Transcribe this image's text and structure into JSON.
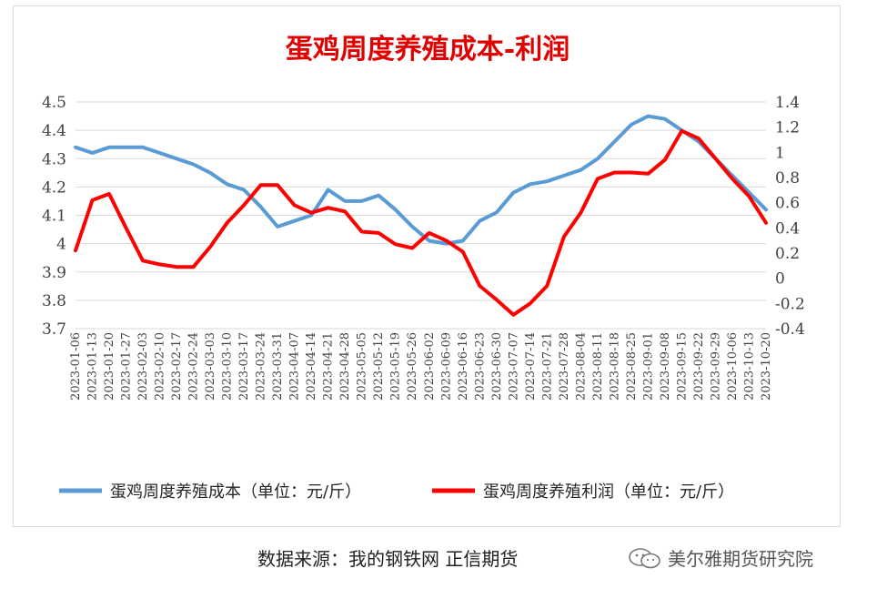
{
  "chart_data": {
    "type": "line",
    "title": "蛋鸡周度养殖成本-利润",
    "x": [
      "2023-01-06",
      "2023-01-13",
      "2023-01-20",
      "2023-01-27",
      "2023-02-03",
      "2023-02-10",
      "2023-02-17",
      "2023-02-24",
      "2023-03-03",
      "2023-03-10",
      "2023-03-17",
      "2023-03-24",
      "2023-03-31",
      "2023-04-07",
      "2023-04-14",
      "2023-04-21",
      "2023-04-28",
      "2023-05-05",
      "2023-05-12",
      "2023-05-19",
      "2023-05-26",
      "2023-06-02",
      "2023-06-09",
      "2023-06-16",
      "2023-06-23",
      "2023-06-30",
      "2023-07-07",
      "2023-07-14",
      "2023-07-21",
      "2023-07-28",
      "2023-08-04",
      "2023-08-11",
      "2023-08-18",
      "2023-08-25",
      "2023-09-01",
      "2023-09-08",
      "2023-09-15",
      "2023-09-22",
      "2023-09-29",
      "2023-10-06",
      "2023-10-13",
      "2023-10-20"
    ],
    "x_tick_labels": [
      "2023-01-06",
      "2023-01-13",
      "2023-01-20",
      "2023-01-27",
      "2023-02-03",
      "2023-02-10",
      "2023-02-17",
      "2023-02-24",
      "2023-03-03",
      "2023-03-10",
      "2023-03-17",
      "2023-03-24",
      "2023-03-31",
      "2023-04-07",
      "2023-04-14",
      "2023-04-21",
      "2023-04-28",
      "2023-05-05",
      "2023-05-12",
      "2023-05-19",
      "2023-05-26",
      "2023-06-02",
      "2023-06-09",
      "2023-06-16",
      "2023-06-23",
      "2023-06-30",
      "2023-07-07",
      "2023-07-14",
      "2023-07-21",
      "2023-07-28",
      "2023-08-04",
      "2023-08-11",
      "2023-08-18",
      "2023-08-25",
      "2023-09-01",
      "2023-09-08",
      "2023-09-15",
      "2023-09-22",
      "2023-09-29",
      "2023-10-06",
      "2023-10-13",
      "2023-10-20"
    ],
    "y_left_ticks": [
      "4.5",
      "4.4",
      "4.3",
      "4.2",
      "4.1",
      "4",
      "3.9",
      "3.8",
      "3.7"
    ],
    "y_right_ticks": [
      "1.4",
      "1.2",
      "1",
      "0.8",
      "0.6",
      "0.4",
      "0.2",
      "0",
      "-0.2",
      "-0.4"
    ],
    "ylim_left": [
      3.7,
      4.5
    ],
    "ylim_right": [
      -0.4,
      1.4
    ],
    "grid": "horizontal",
    "legend_position": "bottom",
    "series": [
      {
        "name": "蛋鸡周度养殖成本（单位：元/斤）",
        "axis": "left",
        "color": "#5B9BD5",
        "values": [
          4.34,
          4.32,
          4.34,
          4.34,
          4.34,
          4.32,
          4.3,
          4.28,
          4.25,
          4.21,
          4.19,
          4.13,
          4.06,
          4.08,
          4.1,
          4.19,
          4.15,
          4.15,
          4.17,
          4.12,
          4.06,
          4.01,
          4.0,
          4.01,
          4.08,
          4.11,
          4.18,
          4.21,
          4.22,
          4.24,
          4.26,
          4.3,
          4.36,
          4.42,
          4.45,
          4.44,
          4.4,
          4.36,
          4.3,
          4.24,
          4.18,
          4.12
        ]
      },
      {
        "name": "蛋鸡周度养殖利润（单位：元/斤）",
        "axis": "right",
        "color": "#FF0000",
        "values": [
          0.22,
          0.62,
          0.67,
          0.4,
          0.14,
          0.11,
          0.09,
          0.09,
          0.25,
          0.44,
          0.58,
          0.74,
          0.74,
          0.58,
          0.52,
          0.56,
          0.53,
          0.37,
          0.36,
          0.27,
          0.24,
          0.36,
          0.3,
          0.21,
          -0.06,
          -0.17,
          -0.29,
          -0.2,
          -0.06,
          0.33,
          0.52,
          0.79,
          0.84,
          0.84,
          0.83,
          0.94,
          1.17,
          1.11,
          0.95,
          0.79,
          0.65,
          0.44
        ]
      }
    ]
  },
  "footer": {
    "source": "数据来源：我的钢铁网  正信期货",
    "watermark": "美尔雅期货研究院"
  }
}
